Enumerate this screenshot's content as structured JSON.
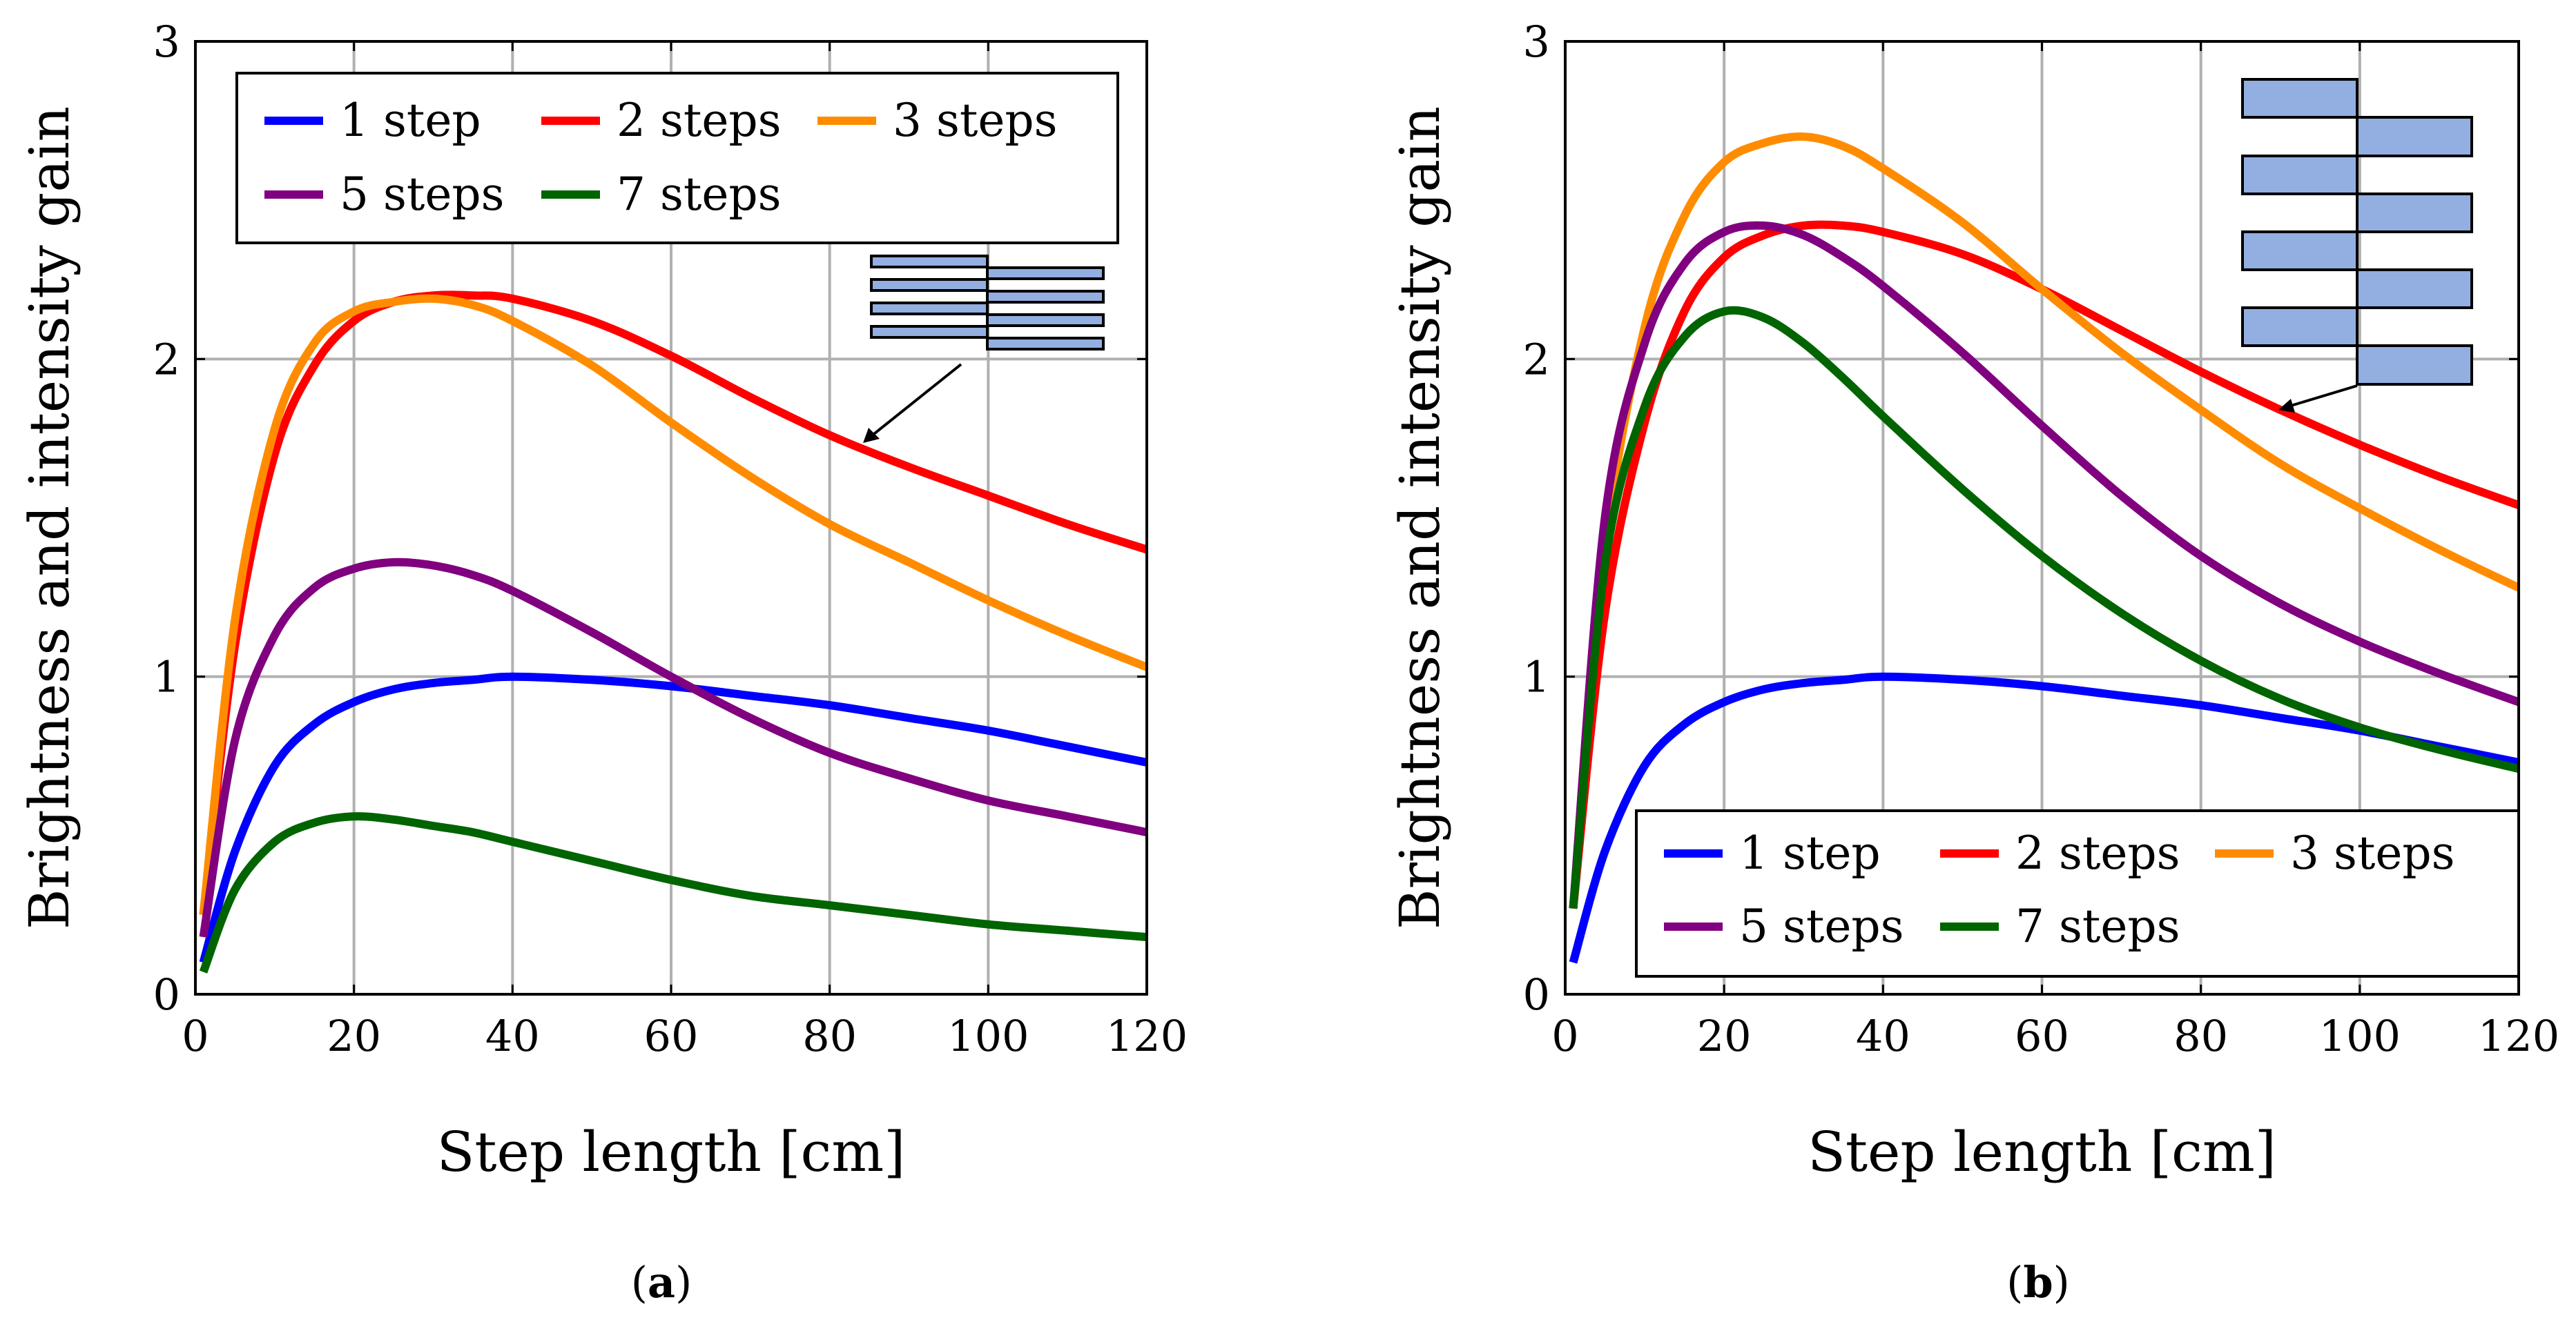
{
  "colors": {
    "1 step": "#0000ff",
    "2 steps": "#ff0000",
    "3 steps": "#ff8c00",
    "5 steps": "#800080",
    "7 steps": "#006400",
    "inset_fill": "#93aee0"
  },
  "chart_data": [
    {
      "type": "line",
      "caption": "(a)",
      "caption_letter": "a",
      "xlabel": "Step length [cm]",
      "ylabel": "Brightness and intensity gain",
      "xlim": [
        0,
        120
      ],
      "ylim": [
        0,
        3
      ],
      "xticks": [
        0,
        20,
        40,
        60,
        80,
        100,
        120
      ],
      "yticks": [
        0,
        1,
        2,
        3
      ],
      "grid": true,
      "legend_position": "top",
      "x": [
        1,
        5,
        10,
        15,
        20,
        25,
        30,
        35,
        40,
        50,
        60,
        70,
        80,
        90,
        100,
        110,
        120
      ],
      "series": [
        {
          "name": "1 step",
          "values": [
            0.1,
            0.45,
            0.72,
            0.85,
            0.92,
            0.96,
            0.98,
            0.99,
            1.0,
            0.99,
            0.97,
            0.94,
            0.91,
            0.87,
            0.83,
            0.78,
            0.73
          ]
        },
        {
          "name": "2 steps",
          "values": [
            0.25,
            1.1,
            1.7,
            1.98,
            2.12,
            2.18,
            2.2,
            2.2,
            2.19,
            2.12,
            2.01,
            1.88,
            1.76,
            1.66,
            1.57,
            1.48,
            1.4
          ]
        },
        {
          "name": "3 steps",
          "values": [
            0.25,
            1.18,
            1.78,
            2.05,
            2.15,
            2.18,
            2.19,
            2.17,
            2.12,
            1.98,
            1.8,
            1.63,
            1.48,
            1.36,
            1.24,
            1.13,
            1.03
          ]
        },
        {
          "name": "5 steps",
          "values": [
            0.18,
            0.8,
            1.13,
            1.28,
            1.34,
            1.36,
            1.35,
            1.32,
            1.27,
            1.14,
            1.0,
            0.87,
            0.76,
            0.68,
            0.61,
            0.56,
            0.51
          ]
        },
        {
          "name": "7 steps",
          "values": [
            0.07,
            0.33,
            0.48,
            0.54,
            0.56,
            0.55,
            0.53,
            0.51,
            0.48,
            0.42,
            0.36,
            0.31,
            0.28,
            0.25,
            0.22,
            0.2,
            0.18
          ]
        }
      ]
    },
    {
      "type": "line",
      "caption": "(b)",
      "caption_letter": "b",
      "xlabel": "Step length [cm]",
      "ylabel": "Brightness and intensity gain",
      "xlim": [
        0,
        120
      ],
      "ylim": [
        0,
        3
      ],
      "xticks": [
        0,
        20,
        40,
        60,
        80,
        100,
        120
      ],
      "yticks": [
        0,
        1,
        2,
        3
      ],
      "grid": true,
      "legend_position": "bottom-right",
      "x": [
        1,
        5,
        10,
        15,
        20,
        25,
        30,
        35,
        40,
        50,
        60,
        70,
        80,
        90,
        100,
        110,
        120
      ],
      "series": [
        {
          "name": "1 step",
          "values": [
            0.1,
            0.45,
            0.72,
            0.85,
            0.92,
            0.96,
            0.98,
            0.99,
            1.0,
            0.99,
            0.97,
            0.94,
            0.91,
            0.87,
            0.83,
            0.78,
            0.73
          ]
        },
        {
          "name": "2 steps",
          "values": [
            0.27,
            1.2,
            1.8,
            2.15,
            2.32,
            2.39,
            2.42,
            2.42,
            2.4,
            2.33,
            2.22,
            2.09,
            1.96,
            1.84,
            1.73,
            1.63,
            1.54
          ]
        },
        {
          "name": "3 steps",
          "values": [
            0.27,
            1.4,
            2.1,
            2.45,
            2.62,
            2.68,
            2.7,
            2.67,
            2.6,
            2.43,
            2.22,
            2.02,
            1.84,
            1.67,
            1.53,
            1.4,
            1.28
          ]
        },
        {
          "name": "5 steps",
          "values": [
            0.27,
            1.5,
            2.05,
            2.3,
            2.4,
            2.42,
            2.39,
            2.32,
            2.23,
            2.02,
            1.79,
            1.57,
            1.38,
            1.23,
            1.11,
            1.01,
            0.92
          ]
        },
        {
          "name": "7 steps",
          "values": [
            0.27,
            1.35,
            1.85,
            2.07,
            2.15,
            2.13,
            2.05,
            1.94,
            1.82,
            1.59,
            1.38,
            1.2,
            1.05,
            0.93,
            0.84,
            0.77,
            0.71
          ]
        }
      ]
    }
  ]
}
